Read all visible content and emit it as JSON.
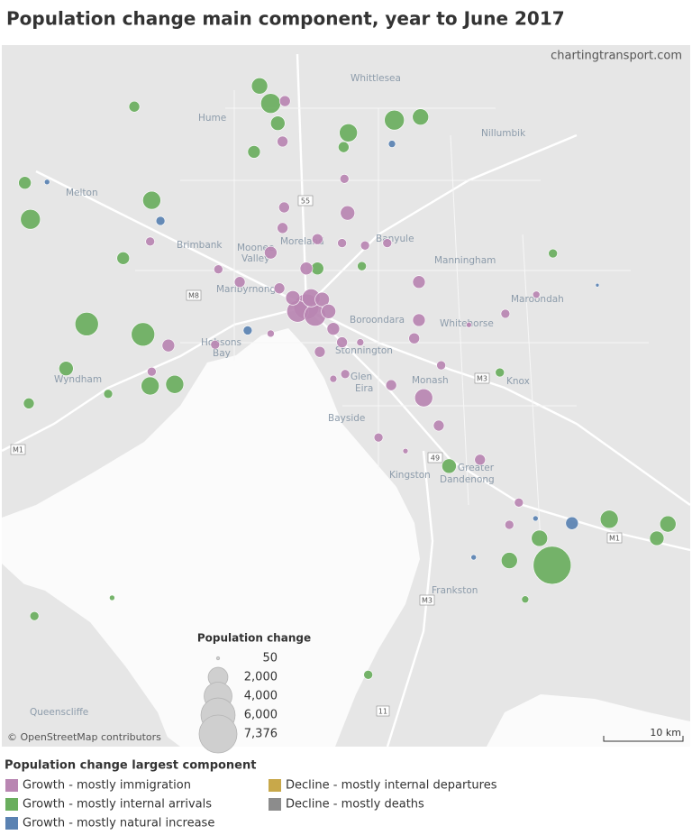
{
  "title": "Population change main component, year to June 2017",
  "map": {
    "credit": "chartingtransport.com",
    "attribution": "© OpenStreetMap contributors",
    "scale_bar": "10 km",
    "places": [
      "Whittlesea",
      "Hume",
      "Nillumbik",
      "Melton",
      "Brimbank",
      "Moonee",
      "Valley",
      "Moreland",
      "Banyule",
      "Manningham",
      "Maribyrnong",
      "Boroondara",
      "Whitehorse",
      "Maroondah",
      "Hobsons",
      "Bay",
      "Stonnington",
      "Wyndham",
      "Monash",
      "Knox",
      "Glen",
      "Eira",
      "Bayside",
      "Kingston",
      "Greater",
      "Dandenong",
      "Frankston",
      "Queenscliffe"
    ],
    "roads": [
      "M1",
      "M8",
      "55",
      "M3",
      "49",
      "M1",
      "M3",
      "11"
    ],
    "bubbles": [
      {
        "east_km": -5.9,
        "north_km": 27.8,
        "value": 1355,
        "component": "Growth - mostly internal arrivals"
      },
      {
        "east_km": -4.5,
        "north_km": 25.6,
        "value": 2024,
        "component": "Growth - mostly internal arrivals"
      },
      {
        "east_km": -3.6,
        "north_km": 23.1,
        "value": 1071,
        "component": "Growth - mostly internal arrivals"
      },
      {
        "east_km": -6.6,
        "north_km": 19.5,
        "value": 820,
        "component": "Growth - mostly internal arrivals"
      },
      {
        "east_km": -21.7,
        "north_km": 25.2,
        "value": 602,
        "component": "Growth - mostly internal arrivals"
      },
      {
        "east_km": -35.5,
        "north_km": 15.6,
        "value": 820,
        "component": "Growth - mostly internal arrivals"
      },
      {
        "east_km": -34.8,
        "north_km": 11.0,
        "value": 2024,
        "component": "Growth - mostly internal arrivals"
      },
      {
        "east_km": -19.5,
        "north_km": 13.4,
        "value": 1673,
        "component": "Growth - mostly internal arrivals"
      },
      {
        "east_km": -23.1,
        "north_km": 6.1,
        "value": 820,
        "component": "Growth - mostly internal arrivals"
      },
      {
        "east_km": -27.7,
        "north_km": -2.2,
        "value": 2827,
        "component": "Growth - mostly internal arrivals"
      },
      {
        "east_km": -20.6,
        "north_km": -3.5,
        "value": 2827,
        "component": "Growth - mostly internal arrivals"
      },
      {
        "east_km": -30.3,
        "north_km": -7.8,
        "value": 1071,
        "component": "Growth - mostly internal arrivals"
      },
      {
        "east_km": -35.0,
        "north_km": -12.2,
        "value": 602,
        "component": "Growth - mostly internal arrivals"
      },
      {
        "east_km": -25.0,
        "north_km": -11.0,
        "value": 418,
        "component": "Growth - mostly internal arrivals"
      },
      {
        "east_km": -19.7,
        "north_km": -10.0,
        "value": 1673,
        "component": "Growth - mostly internal arrivals"
      },
      {
        "east_km": -16.6,
        "north_km": -9.8,
        "value": 1673,
        "component": "Growth - mostly internal arrivals"
      },
      {
        "east_km": 11.1,
        "north_km": 23.5,
        "value": 2024,
        "component": "Growth - mostly internal arrivals"
      },
      {
        "east_km": 14.4,
        "north_km": 23.9,
        "value": 1355,
        "component": "Growth - mostly internal arrivals"
      },
      {
        "east_km": 5.3,
        "north_km": 21.9,
        "value": 1673,
        "component": "Growth - mostly internal arrivals"
      },
      {
        "east_km": 4.7,
        "north_km": 20.1,
        "value": 602,
        "component": "Growth - mostly internal arrivals"
      },
      {
        "east_km": 1.4,
        "north_km": 4.8,
        "value": 820,
        "component": "Growth - mostly internal arrivals"
      },
      {
        "east_km": 7.0,
        "north_km": 5.1,
        "value": 418,
        "component": "Growth - mostly internal arrivals"
      },
      {
        "east_km": 18.0,
        "north_km": -20.1,
        "value": 1071,
        "component": "Growth - mostly internal arrivals"
      },
      {
        "east_km": 31.1,
        "north_km": 6.7,
        "value": 418,
        "component": "Growth - mostly internal arrivals"
      },
      {
        "east_km": 24.4,
        "north_km": -8.3,
        "value": 418,
        "component": "Growth - mostly internal arrivals"
      },
      {
        "east_km": 38.2,
        "north_km": -26.8,
        "value": 1673,
        "component": "Growth - mostly internal arrivals"
      },
      {
        "east_km": 45.6,
        "north_km": -27.4,
        "value": 1355,
        "component": "Growth - mostly internal arrivals"
      },
      {
        "east_km": 44.2,
        "north_km": -29.2,
        "value": 1071,
        "component": "Growth - mostly internal arrivals"
      },
      {
        "east_km": 29.4,
        "north_km": -29.2,
        "value": 1355,
        "component": "Growth - mostly internal arrivals"
      },
      {
        "east_km": 25.6,
        "north_km": -32.0,
        "value": 1355,
        "component": "Growth - mostly internal arrivals"
      },
      {
        "east_km": 31.0,
        "north_km": -32.6,
        "value": 7376,
        "component": "Growth - mostly internal arrivals"
      },
      {
        "east_km": 27.6,
        "north_km": -36.9,
        "value": 268,
        "component": "Growth - mostly internal arrivals"
      },
      {
        "east_km": 7.8,
        "north_km": -46.4,
        "value": 418,
        "component": "Growth - mostly internal arrivals"
      },
      {
        "east_km": -34.3,
        "north_km": -39.0,
        "value": 418,
        "component": "Growth - mostly internal arrivals"
      },
      {
        "east_km": -24.5,
        "north_km": -36.7,
        "value": 150,
        "component": "Growth - mostly internal arrivals"
      },
      {
        "east_km": -32.7,
        "north_km": 15.7,
        "value": 150,
        "component": "Growth - mostly natural increase"
      },
      {
        "east_km": -18.4,
        "north_km": 10.8,
        "value": 418,
        "component": "Growth - mostly natural increase"
      },
      {
        "east_km": 10.8,
        "north_km": 20.5,
        "value": 268,
        "component": "Growth - mostly natural increase"
      },
      {
        "east_km": -7.4,
        "north_km": -3.0,
        "value": 418,
        "component": "Growth - mostly natural increase"
      },
      {
        "east_km": 33.5,
        "north_km": -27.3,
        "value": 820,
        "component": "Growth - mostly natural increase"
      },
      {
        "east_km": 28.9,
        "north_km": -26.7,
        "value": 150,
        "component": "Growth - mostly natural increase"
      },
      {
        "east_km": 21.1,
        "north_km": -31.6,
        "value": 150,
        "component": "Growth - mostly natural increase"
      },
      {
        "east_km": 36.7,
        "north_km": 2.7,
        "value": 67,
        "component": "Growth - mostly natural increase"
      },
      {
        "east_km": 0.0,
        "north_km": 0.0,
        "value": 3279,
        "component": "Growth - mostly immigration"
      },
      {
        "east_km": -1.1,
        "north_km": -0.6,
        "value": 2409,
        "component": "Growth - mostly immigration"
      },
      {
        "east_km": 1.1,
        "north_km": -1.1,
        "value": 2409,
        "component": "Growth - mostly immigration"
      },
      {
        "east_km": 0.6,
        "north_km": 1.1,
        "value": 1673,
        "component": "Growth - mostly immigration"
      },
      {
        "east_km": -1.7,
        "north_km": 1.1,
        "value": 1071,
        "component": "Growth - mostly immigration"
      },
      {
        "east_km": 2.0,
        "north_km": 0.9,
        "value": 1071,
        "component": "Growth - mostly immigration"
      },
      {
        "east_km": 2.8,
        "north_km": -0.6,
        "value": 1071,
        "component": "Growth - mostly immigration"
      },
      {
        "east_km": 3.4,
        "north_km": -2.8,
        "value": 820,
        "component": "Growth - mostly immigration"
      },
      {
        "east_km": 1.7,
        "north_km": -5.7,
        "value": 602,
        "component": "Growth - mostly immigration"
      },
      {
        "east_km": 0.0,
        "north_km": 4.8,
        "value": 820,
        "component": "Growth - mostly immigration"
      },
      {
        "east_km": -3.4,
        "north_km": 2.3,
        "value": 602,
        "component": "Growth - mostly immigration"
      },
      {
        "east_km": -4.5,
        "north_km": 6.8,
        "value": 820,
        "component": "Growth - mostly immigration"
      },
      {
        "east_km": -3.0,
        "north_km": 9.9,
        "value": 602,
        "component": "Growth - mostly immigration"
      },
      {
        "east_km": 1.4,
        "north_km": 8.5,
        "value": 602,
        "component": "Growth - mostly immigration"
      },
      {
        "east_km": -2.8,
        "north_km": 12.5,
        "value": 602,
        "component": "Growth - mostly immigration"
      },
      {
        "east_km": 5.2,
        "north_km": 11.8,
        "value": 1071,
        "component": "Growth - mostly immigration"
      },
      {
        "east_km": 4.8,
        "north_km": 16.1,
        "value": 418,
        "component": "Growth - mostly immigration"
      },
      {
        "east_km": -3.0,
        "north_km": 20.8,
        "value": 602,
        "component": "Growth - mostly immigration"
      },
      {
        "east_km": -2.7,
        "north_km": 25.9,
        "value": 602,
        "component": "Growth - mostly immigration"
      },
      {
        "east_km": -19.7,
        "north_km": 8.2,
        "value": 418,
        "component": "Growth - mostly immigration"
      },
      {
        "east_km": -17.4,
        "north_km": -4.9,
        "value": 820,
        "component": "Growth - mostly immigration"
      },
      {
        "east_km": -19.5,
        "north_km": -8.2,
        "value": 418,
        "component": "Growth - mostly immigration"
      },
      {
        "east_km": -11.5,
        "north_km": -4.8,
        "value": 418,
        "component": "Growth - mostly immigration"
      },
      {
        "east_km": -8.4,
        "north_km": 3.1,
        "value": 602,
        "component": "Growth - mostly immigration"
      },
      {
        "east_km": -11.1,
        "north_km": 4.7,
        "value": 418,
        "component": "Growth - mostly immigration"
      },
      {
        "east_km": 14.2,
        "north_km": 3.1,
        "value": 820,
        "component": "Growth - mostly immigration"
      },
      {
        "east_km": 14.2,
        "north_km": -1.7,
        "value": 820,
        "component": "Growth - mostly immigration"
      },
      {
        "east_km": 13.6,
        "north_km": -4.0,
        "value": 602,
        "component": "Growth - mostly immigration"
      },
      {
        "east_km": 14.8,
        "north_km": -11.5,
        "value": 1673,
        "component": "Growth - mostly immigration"
      },
      {
        "east_km": 10.7,
        "north_km": -9.9,
        "value": 602,
        "component": "Growth - mostly immigration"
      },
      {
        "east_km": 16.7,
        "north_km": -15.0,
        "value": 602,
        "component": "Growth - mostly immigration"
      },
      {
        "east_km": 21.9,
        "north_km": -19.3,
        "value": 602,
        "component": "Growth - mostly immigration"
      },
      {
        "east_km": 25.1,
        "north_km": -0.9,
        "value": 418,
        "component": "Growth - mostly immigration"
      },
      {
        "east_km": 29.0,
        "north_km": 1.5,
        "value": 268,
        "component": "Growth - mostly immigration"
      },
      {
        "east_km": 26.8,
        "north_km": -24.7,
        "value": 418,
        "component": "Growth - mostly immigration"
      },
      {
        "east_km": 25.6,
        "north_km": -27.5,
        "value": 418,
        "component": "Growth - mostly immigration"
      },
      {
        "east_km": 4.9,
        "north_km": -8.5,
        "value": 418,
        "component": "Growth - mostly immigration"
      },
      {
        "east_km": 9.1,
        "north_km": -16.5,
        "value": 418,
        "component": "Growth - mostly immigration"
      },
      {
        "east_km": 4.5,
        "north_km": -4.5,
        "value": 602,
        "component": "Growth - mostly immigration"
      },
      {
        "east_km": 17.0,
        "north_km": -7.4,
        "value": 418,
        "component": "Growth - mostly immigration"
      },
      {
        "east_km": 4.5,
        "north_km": 8.0,
        "value": 418,
        "component": "Growth - mostly immigration"
      },
      {
        "east_km": 7.4,
        "north_km": 7.7,
        "value": 418,
        "component": "Growth - mostly immigration"
      },
      {
        "east_km": 10.2,
        "north_km": 8.0,
        "value": 418,
        "component": "Growth - mostly immigration"
      },
      {
        "east_km": -4.5,
        "north_km": -3.4,
        "value": 268,
        "component": "Growth - mostly immigration"
      },
      {
        "east_km": 3.4,
        "north_km": -9.1,
        "value": 268,
        "component": "Growth - mostly immigration"
      },
      {
        "east_km": 6.8,
        "north_km": -4.5,
        "value": 268,
        "component": "Growth - mostly immigration"
      },
      {
        "east_km": 20.5,
        "north_km": -2.3,
        "value": 150,
        "component": "Growth - mostly immigration"
      },
      {
        "east_km": 12.5,
        "north_km": -18.2,
        "value": 150,
        "component": "Growth - mostly immigration"
      }
    ]
  },
  "size_legend": {
    "title": "Population change",
    "entries": [
      50,
      {
        "value": 2000,
        "label": "2,000"
      },
      {
        "value": 4000,
        "label": "4,000"
      },
      {
        "value": 6000,
        "label": "6,000"
      },
      {
        "value": 7376,
        "label": "7,376"
      }
    ]
  },
  "color_legend": {
    "title": "Population change largest component",
    "items": [
      {
        "name": "Growth - mostly immigration",
        "color": "#b986b2"
      },
      {
        "name": "Growth - mostly internal arrivals",
        "color": "#6aae5e"
      },
      {
        "name": "Growth - mostly natural increase",
        "color": "#5a82b2"
      },
      {
        "name": "Decline - mostly internal departures",
        "color": "#c8a84a"
      },
      {
        "name": "Decline - mostly deaths",
        "color": "#8c8c8c"
      }
    ]
  }
}
